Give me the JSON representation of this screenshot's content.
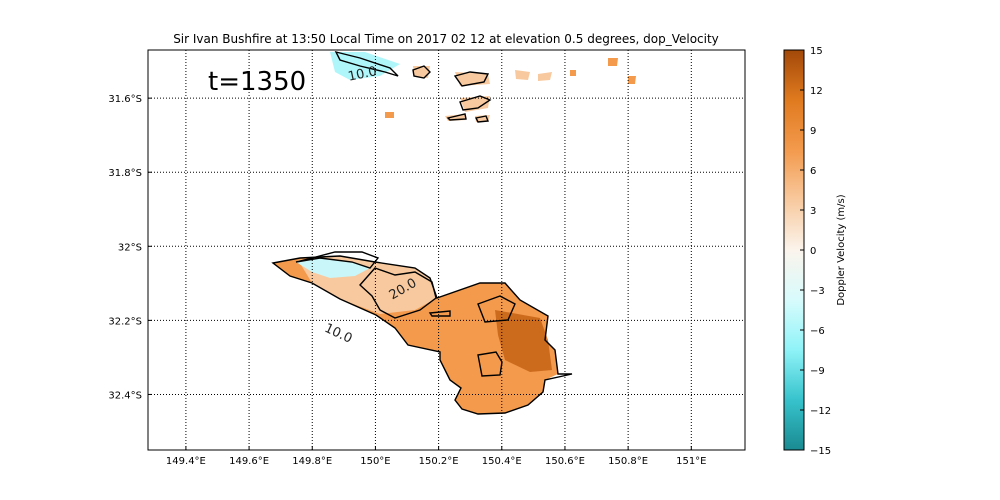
{
  "chart_data": {
    "type": "heatmap",
    "title": "Sir Ivan Bushfire at 13:50 Local Time on 2017 02 12 at elevation 0.5 degrees, dop_Velocity",
    "annotation": "t=1350",
    "xlabel": "",
    "ylabel": "",
    "xlim": [
      149.28,
      151.17
    ],
    "ylim": [
      -32.55,
      -31.47
    ],
    "x_ticks": [
      149.4,
      149.6,
      149.8,
      150.0,
      150.2,
      150.4,
      150.6,
      150.8,
      151.0
    ],
    "x_tick_labels": [
      "149.4°E",
      "149.6°E",
      "149.8°E",
      "150°E",
      "150.2°E",
      "150.4°E",
      "150.6°E",
      "150.8°E",
      "151°E"
    ],
    "y_ticks": [
      -31.6,
      -31.8,
      -32.0,
      -32.2,
      -32.4
    ],
    "y_tick_labels": [
      "31.6°S",
      "31.8°S",
      "32°S",
      "32.2°S",
      "32.4°S"
    ],
    "grid": true,
    "colorbar": {
      "label": "Doppler Velocity (m/s)",
      "range": [
        -15,
        15
      ],
      "ticks": [
        15,
        12,
        9,
        6,
        3,
        0,
        -3,
        -6,
        -9,
        -12,
        -15
      ],
      "colors": [
        "#1a8a91",
        "#37c3cc",
        "#8ff3f8",
        "#d8fbfc",
        "#fbf4ec",
        "#f8c99e",
        "#f39a4d",
        "#e07a1f",
        "#a24909"
      ]
    },
    "contour_labels": [
      "10.0",
      "20.0",
      "10.0"
    ],
    "contour_label_positions": [
      [
        149.96,
        -31.54
      ],
      [
        150.09,
        -32.12
      ],
      [
        149.88,
        -32.24
      ]
    ]
  }
}
